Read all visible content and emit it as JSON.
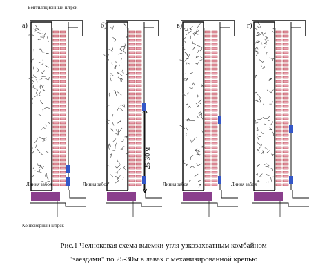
{
  "header": {
    "ventilation_drift": "Вентиляционный штрек",
    "conveyor_drift": "Конвейерный штрек"
  },
  "panels": [
    {
      "label": "а)",
      "face_line": "Линия забоя"
    },
    {
      "label": "б)",
      "face_line": "Линия забоя"
    },
    {
      "label": "в)",
      "face_line": "Линия забоя"
    },
    {
      "label": "г)",
      "face_line": "Линия забоя"
    }
  ],
  "dimension": "25-30 м",
  "caption": [
    "Рис.1 Челноковая схема выемки угля узкозахватным комбайном",
    "\"заездами\" по 25-30м в лавах с механизированной крепью"
  ]
}
